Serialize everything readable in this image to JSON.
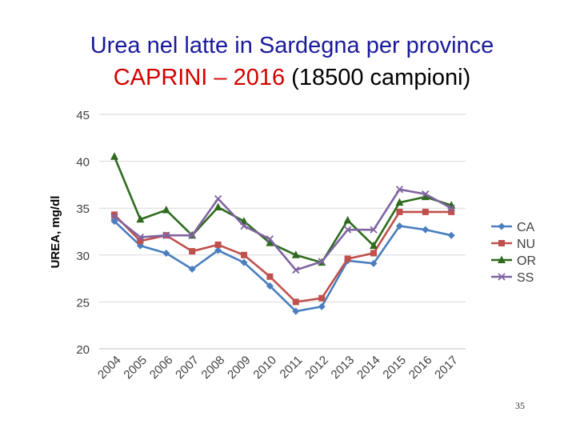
{
  "title": {
    "line1": "Urea nel latte in Sardegna per province",
    "highlight": "CAPRINI – 2016",
    "rest": " (18500 campioni)"
  },
  "page_number": "35",
  "chart_data": {
    "type": "line",
    "ylabel": "UREA, mg/dl",
    "xlabel": "",
    "ylim": [
      20,
      45
    ],
    "yticks": [
      20,
      25,
      30,
      35,
      40,
      45
    ],
    "grid": true,
    "legend_position": "right",
    "categories": [
      "2004",
      "2005",
      "2006",
      "2007",
      "2008",
      "2009",
      "2010",
      "2011",
      "2012",
      "2013",
      "2014",
      "2015",
      "2016",
      "2017"
    ],
    "series": [
      {
        "name": "CA",
        "color": "#4a7ebf",
        "marker": "diamond",
        "values": [
          33.6,
          31.0,
          30.2,
          28.5,
          30.5,
          29.2,
          26.7,
          24.0,
          24.5,
          29.4,
          29.1,
          33.1,
          32.7,
          32.1
        ]
      },
      {
        "name": "NU",
        "color": "#c0504d",
        "marker": "square",
        "values": [
          34.3,
          31.5,
          32.1,
          30.4,
          31.1,
          30.0,
          27.7,
          25.0,
          25.4,
          29.6,
          30.2,
          34.6,
          34.6,
          34.6
        ]
      },
      {
        "name": "OR",
        "color": "#2e6b1e",
        "marker": "triangle",
        "values": [
          40.5,
          33.8,
          34.8,
          32.1,
          35.1,
          33.6,
          31.3,
          30.0,
          29.2,
          33.7,
          31.0,
          35.6,
          36.2,
          35.3
        ]
      },
      {
        "name": "SS",
        "color": "#8064a2",
        "marker": "x",
        "values": [
          34.1,
          31.9,
          32.1,
          32.1,
          36.0,
          33.1,
          31.7,
          28.4,
          29.3,
          32.7,
          32.7,
          37.0,
          36.5,
          35.0
        ]
      }
    ]
  }
}
